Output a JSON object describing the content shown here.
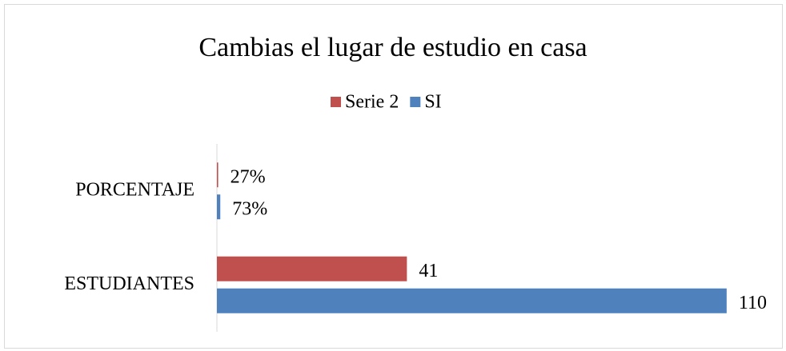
{
  "chart_data": {
    "type": "hbar",
    "title": "Cambias el lugar de estudio en casa",
    "categories": [
      "ESTUDIANTES",
      "PORCENTAJE"
    ],
    "series": [
      {
        "name": "Serie 2",
        "color": "#c0504d",
        "values": [
          41,
          0.27
        ],
        "value_labels": [
          "41",
          "27%"
        ]
      },
      {
        "name": "SI",
        "color": "#4f81bd",
        "values": [
          110,
          0.73
        ],
        "value_labels": [
          "110",
          "73%"
        ]
      }
    ],
    "xlim": [
      0,
      114
    ],
    "legend": "top"
  }
}
